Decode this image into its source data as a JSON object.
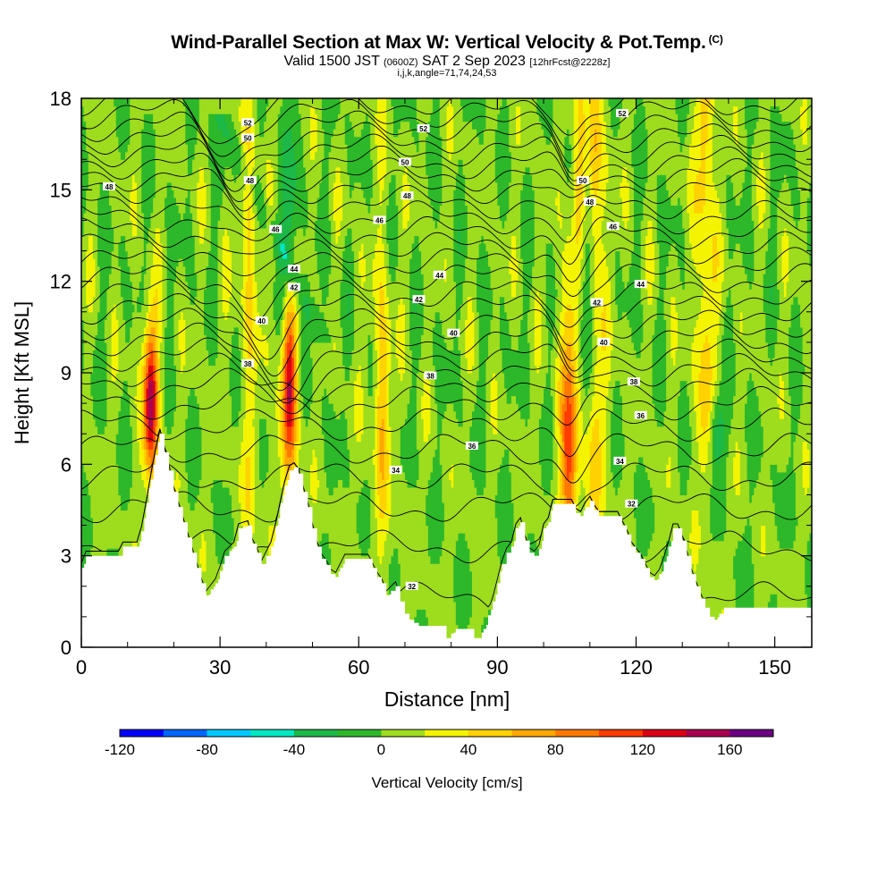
{
  "header": {
    "title": "Wind-Parallel Section at Max W: Vertical Velocity & Pot.Temp.",
    "copyright": "(C)",
    "valid_prefix": "Valid 1500 JST",
    "valid_utc": "(0600Z)",
    "valid_date": "SAT 2 Sep 2023",
    "forecast": "[12hrFcst@2228z]",
    "params": "i,j,k,angle=71,74,24,53"
  },
  "chart_data": {
    "type": "heatmap",
    "xlabel": "Distance [nm]",
    "ylabel": "Height [Kft MSL]",
    "xlim": [
      0,
      158
    ],
    "ylim": [
      0,
      18
    ],
    "xticks": [
      "0",
      "30",
      "60",
      "90",
      "120",
      "150"
    ],
    "yticks": [
      "0",
      "3",
      "6",
      "9",
      "12",
      "15",
      "18"
    ],
    "colorbar": {
      "label": "Vertical Velocity [cm/s]",
      "min": -120,
      "max": 180,
      "step": 20,
      "tick_labels": [
        "-120",
        "-80",
        "-40",
        "0",
        "40",
        "80",
        "120",
        "160"
      ],
      "colors": [
        "#0000ff",
        "#0066ff",
        "#00c8ff",
        "#00e8c0",
        "#1cb848",
        "#2db82a",
        "#9edc1e",
        "#f4f400",
        "#ffd200",
        "#ffa800",
        "#ff7800",
        "#ff3c00",
        "#dc0014",
        "#aa0050",
        "#6a0082"
      ]
    },
    "terrain_kft": [
      [
        0,
        2.6
      ],
      [
        1,
        3.0
      ],
      [
        8,
        3.0
      ],
      [
        9,
        3.3
      ],
      [
        12,
        3.3
      ],
      [
        13,
        3.8
      ],
      [
        14,
        4.6
      ],
      [
        15,
        5.5
      ],
      [
        16,
        6.3
      ],
      [
        17,
        7.0
      ],
      [
        18,
        6.4
      ],
      [
        19,
        5.8
      ],
      [
        20,
        5.1
      ],
      [
        21,
        4.6
      ],
      [
        22,
        4.1
      ],
      [
        23,
        3.6
      ],
      [
        24,
        3.1
      ],
      [
        25,
        2.6
      ],
      [
        26,
        2.1
      ],
      [
        27,
        1.7
      ],
      [
        28,
        1.9
      ],
      [
        29,
        2.1
      ],
      [
        30,
        2.5
      ],
      [
        31,
        3.0
      ],
      [
        33,
        3.3
      ],
      [
        34,
        3.9
      ],
      [
        36,
        4.0
      ],
      [
        37,
        3.4
      ],
      [
        38,
        3.1
      ],
      [
        39,
        2.7
      ],
      [
        41,
        3.3
      ],
      [
        42,
        3.9
      ],
      [
        43,
        4.6
      ],
      [
        44,
        5.3
      ],
      [
        45,
        5.8
      ],
      [
        46,
        5.9
      ],
      [
        47,
        5.7
      ],
      [
        48,
        5.1
      ],
      [
        49,
        4.6
      ],
      [
        50,
        3.9
      ],
      [
        51,
        3.3
      ],
      [
        52,
        2.9
      ],
      [
        53,
        2.7
      ],
      [
        54,
        2.4
      ],
      [
        55,
        2.3
      ],
      [
        56,
        2.6
      ],
      [
        57,
        2.9
      ],
      [
        62,
        2.9
      ],
      [
        63,
        2.6
      ],
      [
        64,
        2.3
      ],
      [
        65,
        2.1
      ],
      [
        66,
        1.7
      ],
      [
        68,
        2.0
      ],
      [
        69,
        1.5
      ],
      [
        70,
        1.1
      ],
      [
        71,
        0.9
      ],
      [
        72,
        0.8
      ],
      [
        73,
        0.7
      ],
      [
        78,
        0.7
      ],
      [
        79,
        0.3
      ],
      [
        81,
        0.6
      ],
      [
        84,
        0.6
      ],
      [
        85,
        0.3
      ],
      [
        86,
        0.3
      ],
      [
        87,
        0.6
      ],
      [
        89,
        1.5
      ],
      [
        90,
        2.1
      ],
      [
        91,
        2.7
      ],
      [
        92,
        3.1
      ],
      [
        93,
        3.3
      ],
      [
        94,
        3.9
      ],
      [
        95,
        4.1
      ],
      [
        96,
        3.5
      ],
      [
        97,
        3.1
      ],
      [
        98,
        3.0
      ],
      [
        99,
        3.2
      ],
      [
        100,
        3.9
      ],
      [
        101,
        4.1
      ],
      [
        102,
        4.7
      ],
      [
        106,
        4.7
      ],
      [
        107,
        4.4
      ],
      [
        108,
        4.3
      ],
      [
        109,
        4.6
      ],
      [
        110,
        4.8
      ],
      [
        111,
        4.5
      ],
      [
        112,
        4.3
      ],
      [
        116,
        4.3
      ],
      [
        117,
        4.0
      ],
      [
        118,
        3.7
      ],
      [
        119,
        3.3
      ],
      [
        120,
        3.1
      ],
      [
        121,
        2.9
      ],
      [
        122,
        2.6
      ],
      [
        123,
        2.3
      ],
      [
        124,
        2.2
      ],
      [
        125,
        2.4
      ],
      [
        126,
        2.8
      ],
      [
        127,
        3.3
      ],
      [
        128,
        3.9
      ],
      [
        129,
        3.9
      ],
      [
        130,
        3.5
      ],
      [
        131,
        3.0
      ],
      [
        132,
        2.4
      ],
      [
        133,
        2.0
      ],
      [
        134,
        1.6
      ],
      [
        135,
        1.3
      ],
      [
        136,
        1.0
      ],
      [
        137,
        0.9
      ],
      [
        138,
        1.1
      ],
      [
        139,
        1.3
      ],
      [
        158,
        1.3
      ]
    ],
    "updraft_cores": [
      {
        "x": 15,
        "z_bottom": 6.0,
        "z_top": 10.5,
        "w_max": 110
      },
      {
        "x": 36.5,
        "z_bottom": 4.5,
        "z_top": 17.5,
        "w_max": 40
      },
      {
        "x": 45,
        "z_bottom": 5.0,
        "z_top": 11.0,
        "w_max": 120
      },
      {
        "x": 65,
        "z_bottom": 2.0,
        "z_top": 14.0,
        "w_max": 40
      },
      {
        "x": 105.5,
        "z_bottom": 4.8,
        "z_top": 10.5,
        "w_max": 150
      },
      {
        "x": 108,
        "z_bottom": 14.0,
        "z_top": 18.0,
        "w_max": 120
      },
      {
        "x": 111,
        "z_bottom": 5.0,
        "z_top": 18.0,
        "w_max": 60
      },
      {
        "x": 135,
        "z_bottom": 8.0,
        "z_top": 18.0,
        "w_max": 70
      }
    ],
    "downdraft_cores": [
      {
        "x": 45,
        "z_bottom": 10.0,
        "z_top": 16.5,
        "w_min": -45
      },
      {
        "x": 109,
        "z_bottom": 9.5,
        "z_top": 17.5,
        "w_min": -60
      },
      {
        "x": 137.5,
        "z_bottom": 6.0,
        "z_top": 8.0,
        "w_min": -50
      }
    ],
    "theta_labels": [
      {
        "text": "52",
        "x": 36,
        "y": 17.2
      },
      {
        "text": "52",
        "x": 74,
        "y": 17.0
      },
      {
        "text": "52",
        "x": 117,
        "y": 17.5
      },
      {
        "text": "50",
        "x": 36,
        "y": 16.7
      },
      {
        "text": "50",
        "x": 70,
        "y": 15.9
      },
      {
        "text": "50",
        "x": 108.5,
        "y": 15.3
      },
      {
        "text": "48",
        "x": 6,
        "y": 15.1
      },
      {
        "text": "48",
        "x": 36.5,
        "y": 15.3
      },
      {
        "text": "48",
        "x": 70.5,
        "y": 14.8
      },
      {
        "text": "48",
        "x": 110,
        "y": 14.6
      },
      {
        "text": "46",
        "x": 42,
        "y": 13.7
      },
      {
        "text": "46",
        "x": 64.5,
        "y": 14.0
      },
      {
        "text": "46",
        "x": 115,
        "y": 13.8
      },
      {
        "text": "44",
        "x": 46,
        "y": 12.4
      },
      {
        "text": "44",
        "x": 77.5,
        "y": 12.2
      },
      {
        "text": "44",
        "x": 121,
        "y": 11.9
      },
      {
        "text": "42",
        "x": 46,
        "y": 11.8
      },
      {
        "text": "42",
        "x": 73,
        "y": 11.4
      },
      {
        "text": "42",
        "x": 111.5,
        "y": 11.3
      },
      {
        "text": "40",
        "x": 39,
        "y": 10.7
      },
      {
        "text": "40",
        "x": 80.5,
        "y": 10.3
      },
      {
        "text": "40",
        "x": 113,
        "y": 10.0
      },
      {
        "text": "38",
        "x": 36,
        "y": 9.3
      },
      {
        "text": "38",
        "x": 75.5,
        "y": 8.9
      },
      {
        "text": "38",
        "x": 119.5,
        "y": 8.7
      },
      {
        "text": "36",
        "x": 84.5,
        "y": 6.6
      },
      {
        "text": "36",
        "x": 121,
        "y": 7.6
      },
      {
        "text": "34",
        "x": 68,
        "y": 5.8
      },
      {
        "text": "34",
        "x": 116.5,
        "y": 6.1
      },
      {
        "text": "32",
        "x": 119,
        "y": 4.7
      },
      {
        "text": "32",
        "x": 71.5,
        "y": 2.0
      }
    ],
    "theta_levels_kft": [
      1.6,
      3.3,
      4.6,
      5.6,
      6.5,
      7.3,
      8.0,
      8.6,
      9.1,
      9.6,
      10.1,
      10.6,
      11.1,
      11.6,
      12.1,
      12.6,
      13.1,
      13.6,
      14.1,
      14.6,
      15.1,
      15.5,
      15.9,
      16.3,
      16.7,
      17.1,
      17.5,
      17.9
    ]
  }
}
